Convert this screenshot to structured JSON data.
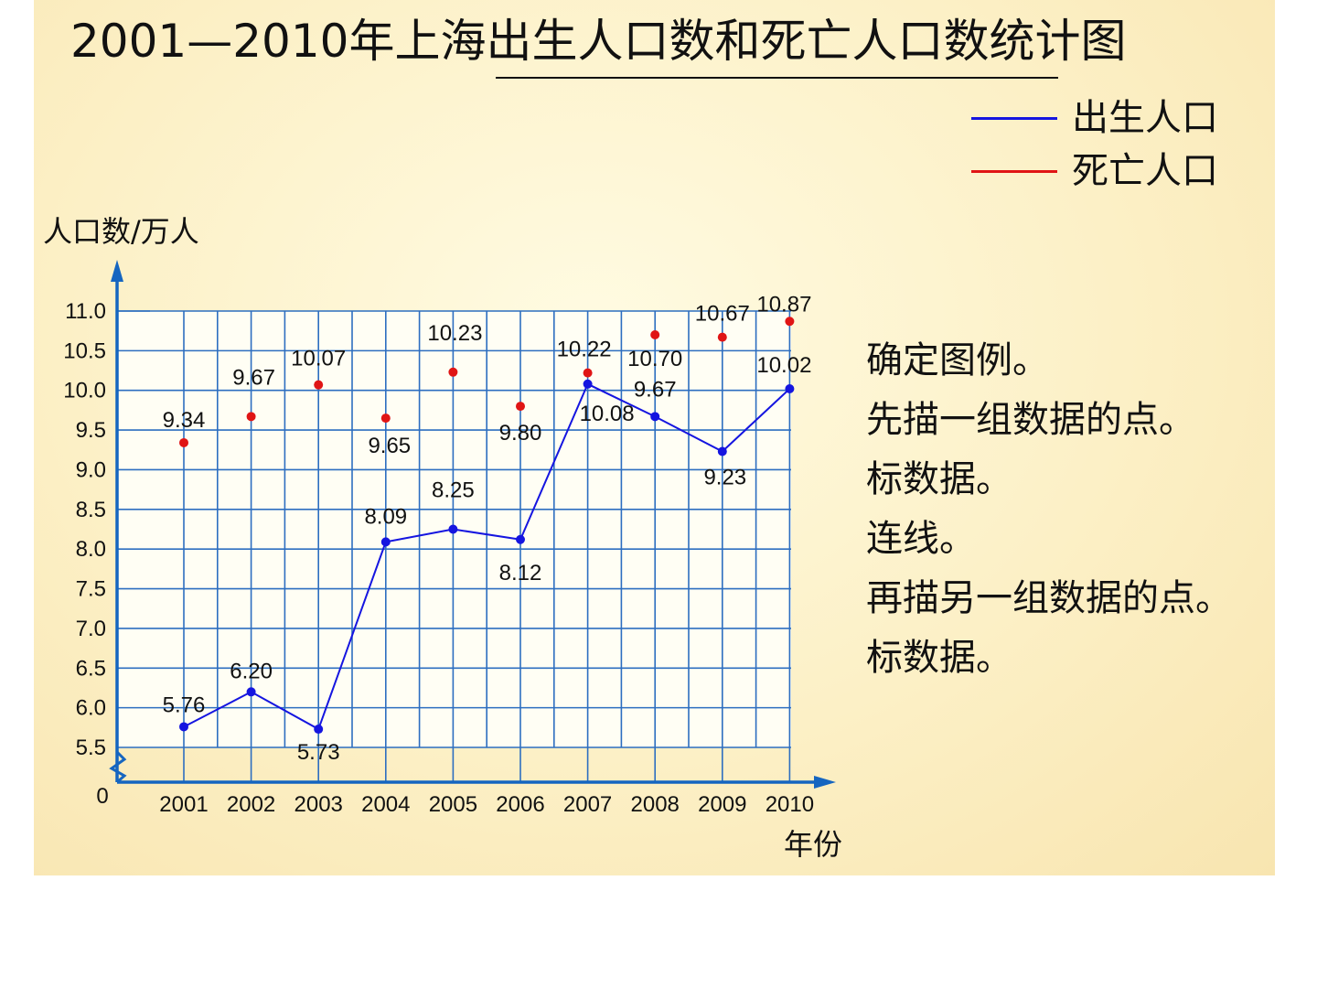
{
  "title": "2001—2010年上海出生人口数和死亡人口数统计图",
  "legend": [
    {
      "label": "出生人口",
      "color": "#1515e0"
    },
    {
      "label": "死亡人口",
      "color": "#e01515"
    }
  ],
  "notes": [
    "确定图例。",
    "先描一组数据的点。",
    "标数据。",
    "连线。",
    "再描另一组数据的点。",
    "标数据。"
  ],
  "chart_data": {
    "type": "line",
    "title": "2001—2010年上海出生人口数和死亡人口数统计图",
    "xlabel": "年份",
    "ylabel": "人口数/万人",
    "categories": [
      "2001",
      "2002",
      "2003",
      "2004",
      "2005",
      "2006",
      "2007",
      "2008",
      "2009",
      "2010"
    ],
    "ylim": [
      5.5,
      11.0
    ],
    "y_ticks": [
      "11.0",
      "10.5",
      "10.0",
      "9.5",
      "9.0",
      "8.5",
      "8.0",
      "7.5",
      "7.0",
      "6.5",
      "6.0",
      "5.5"
    ],
    "y_origin_label": "0",
    "y_axis_break": true,
    "grid": true,
    "legend_position": "top-right",
    "series": [
      {
        "name": "出生人口",
        "color": "#1515e0",
        "style": "line-with-markers",
        "values": [
          5.76,
          6.2,
          5.73,
          8.09,
          8.25,
          8.12,
          10.08,
          9.67,
          9.23,
          10.02
        ],
        "labels": [
          "5.76",
          "6.20",
          "5.73",
          "8.09",
          "8.25",
          "8.12",
          "10.08",
          "9.67",
          "9.23",
          "10.02"
        ]
      },
      {
        "name": "死亡人口",
        "color": "#e01515",
        "style": "markers-only",
        "values": [
          9.34,
          9.67,
          10.07,
          9.65,
          10.23,
          9.8,
          10.22,
          10.7,
          10.67,
          10.87
        ],
        "labels": [
          "9.34",
          "9.67",
          "10.07",
          "9.65",
          "10.23",
          "9.80",
          "10.22",
          "10.70",
          "10.67",
          "10.87"
        ]
      }
    ]
  }
}
